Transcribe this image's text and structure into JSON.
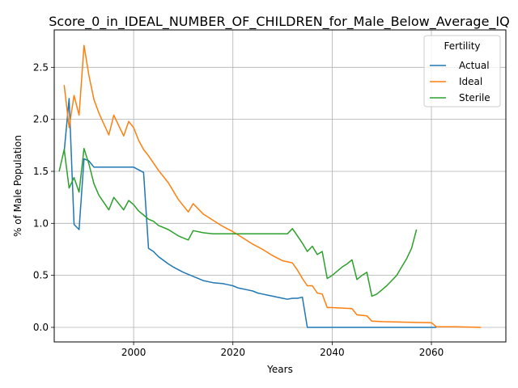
{
  "chart_data": {
    "type": "line",
    "title": "Score_0_in_IDEAL_NUMBER_OF_CHILDREN_for_Male_Below_Average_IQ",
    "xlabel": "Years",
    "ylabel": "% of Male Population",
    "xlim": [
      1984,
      2075
    ],
    "ylim": [
      -0.14,
      2.86
    ],
    "xticks": [
      2000,
      2020,
      2040,
      2060
    ],
    "yticks": [
      0.0,
      0.5,
      1.0,
      1.5,
      2.0,
      2.5
    ],
    "grid": true,
    "legend": {
      "title": "Fertility",
      "position": "top-right"
    },
    "series": [
      {
        "name": "Actual",
        "color": "#1f77b4",
        "x": [
          1986,
          1987,
          1988,
          1989,
          1990,
          1991,
          1992,
          1995,
          2000,
          2002,
          2003,
          2004,
          2005,
          2007,
          2008,
          2010,
          2012,
          2014,
          2016,
          2018,
          2019,
          2020,
          2021,
          2022,
          2023,
          2024,
          2025,
          2026,
          2027,
          2028,
          2030,
          2031,
          2032,
          2033,
          2034,
          2035,
          2040,
          2050,
          2060,
          2061
        ],
        "y": [
          1.69,
          2.2,
          0.99,
          0.94,
          1.62,
          1.6,
          1.54,
          1.54,
          1.54,
          1.49,
          0.76,
          0.73,
          0.68,
          0.61,
          0.58,
          0.53,
          0.49,
          0.45,
          0.43,
          0.42,
          0.41,
          0.4,
          0.38,
          0.37,
          0.36,
          0.35,
          0.33,
          0.32,
          0.31,
          0.3,
          0.28,
          0.27,
          0.28,
          0.28,
          0.29,
          0.0,
          0.0,
          0.0,
          0.0,
          0.0
        ]
      },
      {
        "name": "Ideal",
        "color": "#ff7f0e",
        "x": [
          1986,
          1987,
          1988,
          1989,
          1990,
          1991,
          1992,
          1993,
          1995,
          1996,
          1998,
          1999,
          2000,
          2001,
          2002,
          2003,
          2005,
          2007,
          2009,
          2011,
          2012,
          2014,
          2016,
          2018,
          2020,
          2022,
          2024,
          2026,
          2028,
          2030,
          2031,
          2032,
          2033,
          2034,
          2035,
          2036,
          2037,
          2038,
          2039,
          2040,
          2044,
          2045,
          2047,
          2048,
          2050,
          2055,
          2060,
          2061,
          2065,
          2070
        ],
        "y": [
          2.33,
          1.92,
          2.23,
          2.04,
          2.71,
          2.42,
          2.19,
          2.06,
          1.85,
          2.04,
          1.84,
          1.98,
          1.92,
          1.8,
          1.71,
          1.65,
          1.51,
          1.39,
          1.23,
          1.11,
          1.19,
          1.09,
          1.03,
          0.97,
          0.92,
          0.86,
          0.8,
          0.75,
          0.69,
          0.64,
          0.63,
          0.62,
          0.55,
          0.47,
          0.4,
          0.4,
          0.33,
          0.32,
          0.19,
          0.19,
          0.18,
          0.12,
          0.11,
          0.06,
          0.055,
          0.05,
          0.045,
          0.005,
          0.005,
          0.0
        ]
      },
      {
        "name": "Sterile",
        "color": "#2ca02c",
        "x": [
          1985,
          1986,
          1987,
          1988,
          1989,
          1990,
          1991,
          1992,
          1993,
          1995,
          1996,
          1998,
          1999,
          2000,
          2001,
          2002,
          2003,
          2004,
          2005,
          2007,
          2009,
          2011,
          2012,
          2014,
          2016,
          2018,
          2020,
          2025,
          2030,
          2031,
          2032,
          2033,
          2034,
          2035,
          2036,
          2037,
          2038,
          2039,
          2040,
          2042,
          2043,
          2044,
          2045,
          2046,
          2047,
          2048,
          2049,
          2050,
          2051,
          2052,
          2053,
          2054,
          2055,
          2056,
          2057
        ],
        "y": [
          1.5,
          1.71,
          1.34,
          1.44,
          1.3,
          1.72,
          1.57,
          1.38,
          1.27,
          1.13,
          1.25,
          1.13,
          1.22,
          1.18,
          1.12,
          1.08,
          1.04,
          1.02,
          0.98,
          0.94,
          0.88,
          0.84,
          0.93,
          0.91,
          0.9,
          0.9,
          0.9,
          0.9,
          0.9,
          0.9,
          0.95,
          0.88,
          0.81,
          0.73,
          0.78,
          0.7,
          0.73,
          0.47,
          0.5,
          0.58,
          0.61,
          0.65,
          0.46,
          0.5,
          0.53,
          0.3,
          0.32,
          0.36,
          0.4,
          0.45,
          0.5,
          0.58,
          0.66,
          0.76,
          0.94
        ]
      }
    ]
  }
}
